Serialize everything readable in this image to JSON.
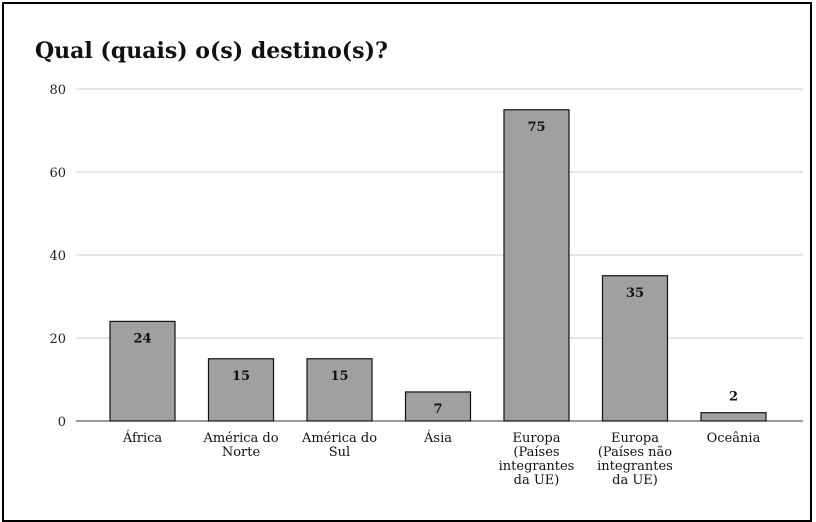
{
  "chart_data": {
    "type": "bar",
    "title": "Qual (quais) o(s) destino(s)?",
    "xlabel": "",
    "ylabel": "",
    "ylim": [
      0,
      80
    ],
    "yticks": [
      0,
      20,
      40,
      60,
      80
    ],
    "grid": true,
    "categories": [
      [
        "África"
      ],
      [
        "América do",
        "Norte"
      ],
      [
        "América do",
        "Sul"
      ],
      [
        "Ásia"
      ],
      [
        "Europa",
        "(Países",
        "integrantes",
        "da UE)"
      ],
      [
        "Europa",
        "(Países não",
        "integrantes",
        "da UE)"
      ],
      [
        "Oceânia"
      ]
    ],
    "values": [
      24,
      15,
      15,
      7,
      75,
      35,
      2
    ],
    "colors": {
      "bar": "#a0a0a0",
      "bar_stroke": "#111111",
      "grid": "#cccccc",
      "outside_label": "#8a8a8a"
    }
  }
}
